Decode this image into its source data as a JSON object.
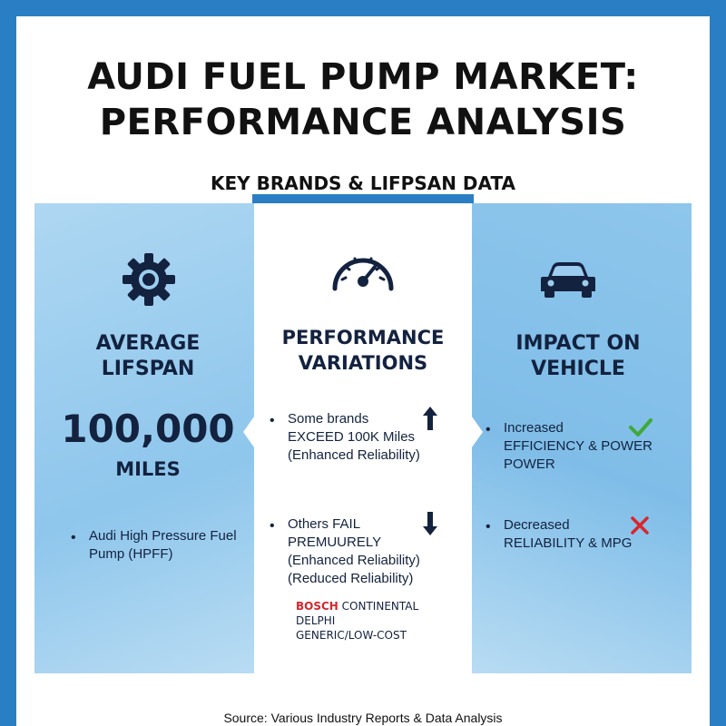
{
  "title_line1": "AUDI FUEL PUMP MARKET:",
  "title_line2": "PERFORMANCE ANALYSIS",
  "subtitle": "KEY BRANDS & LIFPSAN DATA",
  "left": {
    "icon": "gear-icon",
    "heading_line1": "AVERAGE",
    "heading_line2": "LIFSPAN",
    "value": "100,000",
    "unit": "MILES",
    "bullet_line1": "Audi High Pressure Fuel",
    "bullet_line2": "Pump (HPFF)"
  },
  "middle": {
    "icon": "speedometer-icon",
    "heading_line1": "PERFORMANCE",
    "heading_line2": "VARIATIONS",
    "bullet1_line1": "Some brands",
    "bullet1_line2": "EXCEED 100K Miles",
    "bullet1_line3": "(Enhanced Reliability)",
    "bullet1_icon": "arrow-up-icon",
    "bullet2_line1": "Others FAIL",
    "bullet2_line2": "PREMUURELY",
    "bullet2_line3": "(Enhanced Reliability)",
    "bullet2_line4": "(Reduced Reliability)",
    "bullet2_icon": "arrow-down-icon",
    "brand_bosch": "BOSCH",
    "brand_continental": "CONTINENTAL",
    "brand_delphi": "DELPHI",
    "brand_generic": "GENERIC/LOW-COST"
  },
  "right": {
    "icon": "car-icon",
    "heading_line1": "IMPACT ON",
    "heading_line2": "VEHICLE",
    "bullet1_line1": "Increased",
    "bullet1_line2": "EFFICIENCY & POWER",
    "bullet1_line3": "POWER",
    "bullet1_icon": "checkmark-icon",
    "bullet2_line1": "Decreased",
    "bullet2_line2": "RELIABILITY & MPG",
    "bullet2_icon": "cross-icon"
  },
  "source": "Source: Various Industry Reports & Data Analysis",
  "colors": {
    "frame": "#2a7fc4",
    "navy": "#13223f",
    "check": "#3fa93a",
    "cross": "#d8262d",
    "bosch": "#d8262d"
  }
}
